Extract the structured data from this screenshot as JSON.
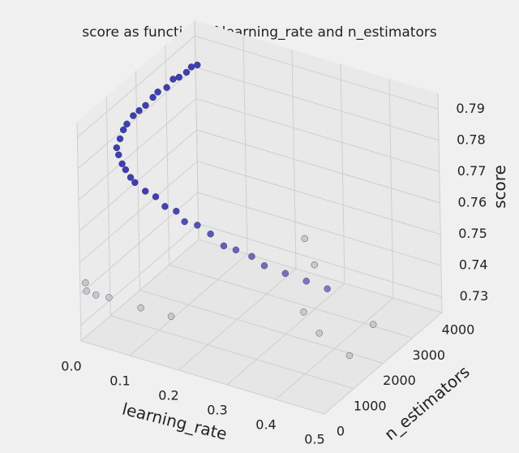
{
  "chart_data": {
    "type": "scatter3d",
    "title": "score as function of learning_rate and n_estimators",
    "xlabel": "learning_rate",
    "ylabel": "n_estimators",
    "zlabel": "score",
    "x": [
      0.01,
      0.01,
      0.012,
      0.015,
      0.015,
      0.02,
      0.02,
      0.022,
      0.025,
      0.03,
      0.03,
      0.035,
      0.04,
      0.045,
      0.05,
      0.06,
      0.07,
      0.08,
      0.09,
      0.1,
      0.12,
      0.14,
      0.16,
      0.18,
      0.2,
      0.22,
      0.25,
      0.28,
      0.3,
      0.33,
      0.36,
      0.4,
      0.44,
      0.48,
      0.005,
      0.01,
      0.02,
      0.05,
      0.1,
      0.15,
      0.25,
      0.3,
      0.35,
      0.4,
      0.45,
      0.48
    ],
    "y": [
      3900,
      3700,
      3500,
      3200,
      3000,
      2700,
      2400,
      2200,
      1900,
      1600,
      1400,
      1100,
      900,
      700,
      500,
      400,
      350,
      300,
      300,
      280,
      300,
      320,
      300,
      350,
      300,
      400,
      350,
      300,
      380,
      420,
      350,
      400,
      450,
      500,
      100,
      50,
      200,
      150,
      400,
      600,
      3500,
      3000,
      1800,
      1500,
      2500,
      1200
    ],
    "z": [
      0.782,
      0.783,
      0.783,
      0.784,
      0.785,
      0.785,
      0.786,
      0.786,
      0.786,
      0.787,
      0.787,
      0.787,
      0.787,
      0.786,
      0.785,
      0.784,
      0.782,
      0.781,
      0.779,
      0.778,
      0.776,
      0.775,
      0.773,
      0.772,
      0.77,
      0.769,
      0.768,
      0.766,
      0.765,
      0.764,
      0.763,
      0.762,
      0.761,
      0.76,
      0.743,
      0.741,
      0.739,
      0.74,
      0.737,
      0.735,
      0.741,
      0.739,
      0.736,
      0.734,
      0.731,
      0.733
    ],
    "color": "#2a2ab8",
    "xlim": [
      0,
      0.5
    ],
    "ylim": [
      0,
      4000
    ],
    "zlim": [
      0.725,
      0.795
    ],
    "xticks": [
      {
        "value": 0,
        "label": "0.0"
      },
      0.1,
      0.2,
      0.3,
      0.4,
      0.5
    ],
    "yticks": [
      0,
      1000,
      2000,
      3000,
      4000
    ],
    "zticks": [
      0.73,
      0.74,
      0.75,
      0.76,
      0.77,
      0.78,
      0.79
    ],
    "grid": true
  }
}
